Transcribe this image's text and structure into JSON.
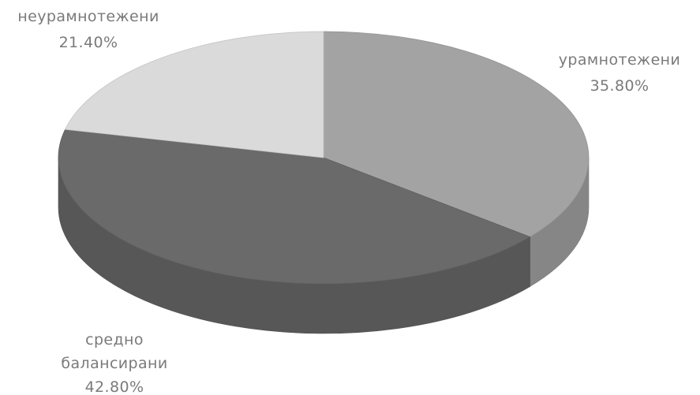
{
  "chart_data": {
    "type": "pie",
    "style": "3d",
    "slices": [
      {
        "label": "урамнотежени",
        "value": 35.8,
        "value_label": "35.80%",
        "color": "#a3a3a3"
      },
      {
        "label_lines": [
          "средно",
          "балансирани"
        ],
        "value": 42.8,
        "value_label": "42.80%",
        "color": "#6a6a6a"
      },
      {
        "label": "неурамнотежени",
        "value": 21.4,
        "value_label": "21.40%",
        "color": "#dadada"
      }
    ]
  }
}
